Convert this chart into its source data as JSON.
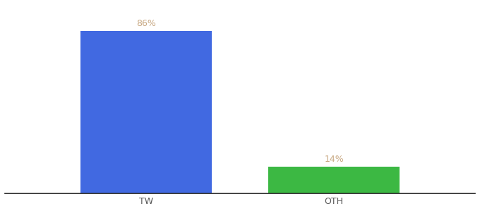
{
  "categories": [
    "TW",
    "OTH"
  ],
  "values": [
    86,
    14
  ],
  "bar_colors": [
    "#4169E1",
    "#3CB843"
  ],
  "value_labels": [
    "86%",
    "14%"
  ],
  "value_label_color": "#c8a882",
  "ylim": [
    0,
    100
  ],
  "background_color": "#ffffff",
  "bar_width": 0.28,
  "x_positions": [
    0.3,
    0.7
  ],
  "xlim": [
    0.0,
    1.0
  ],
  "figsize": [
    6.8,
    3.0
  ],
  "dpi": 100,
  "tick_fontsize": 9,
  "label_fontsize": 9,
  "tick_color": "#555555",
  "spine_color": "#222222"
}
